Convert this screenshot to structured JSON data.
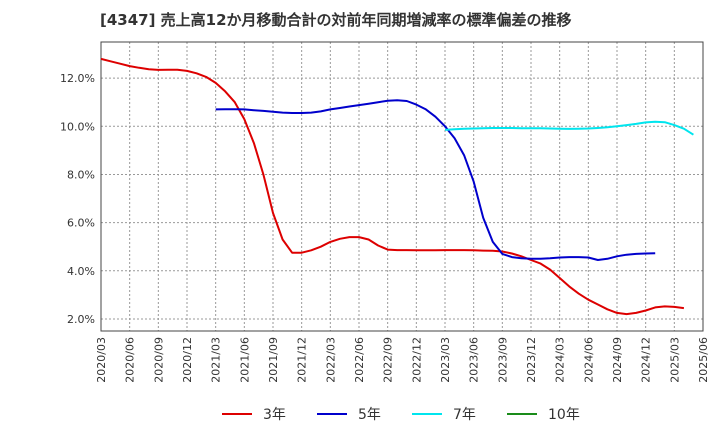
{
  "chart_data": {
    "type": "line",
    "title": "[4347]  売上高12か月移動合計の対前年同期増減率の標準偏差の推移",
    "xlabel": "",
    "ylabel": "",
    "ylim": [
      1.5,
      13.5
    ],
    "y_ticks": [
      2.0,
      4.0,
      6.0,
      8.0,
      10.0,
      12.0
    ],
    "y_tick_labels": [
      "2.0%",
      "4.0%",
      "6.0%",
      "8.0%",
      "10.0%",
      "12.0%"
    ],
    "x_tick_labels": [
      "2020/03",
      "2020/06",
      "2020/09",
      "2020/12",
      "2021/03",
      "2021/06",
      "2021/09",
      "2021/12",
      "2022/03",
      "2022/06",
      "2022/09",
      "2022/12",
      "2023/03",
      "2023/06",
      "2023/09",
      "2023/12",
      "2024/03",
      "2024/06",
      "2024/09",
      "2024/12",
      "2025/03",
      "2025/06"
    ],
    "x_start": "2020/03",
    "grid": true,
    "legend_position": "bottom",
    "series": [
      {
        "name": "3年",
        "color": "#dd0000",
        "start_month_offset": 0,
        "values": [
          12.8,
          12.7,
          12.6,
          12.5,
          12.43,
          12.37,
          12.34,
          12.35,
          12.35,
          12.3,
          12.2,
          12.05,
          11.8,
          11.45,
          11.0,
          10.3,
          9.3,
          8.0,
          6.4,
          5.3,
          4.75,
          4.75,
          4.85,
          5.0,
          5.2,
          5.33,
          5.4,
          5.4,
          5.3,
          5.05,
          4.88,
          4.86,
          4.86,
          4.85,
          4.85,
          4.85,
          4.86,
          4.86,
          4.86,
          4.85,
          4.84,
          4.83,
          4.8,
          4.72,
          4.6,
          4.45,
          4.3,
          4.05,
          3.7,
          3.35,
          3.05,
          2.8,
          2.6,
          2.4,
          2.25,
          2.2,
          2.25,
          2.35,
          2.48,
          2.52,
          2.5,
          2.45
        ]
      },
      {
        "name": "5年",
        "color": "#0000cc",
        "start_month_offset": 12,
        "values": [
          10.7,
          10.71,
          10.71,
          10.7,
          10.67,
          10.64,
          10.6,
          10.57,
          10.55,
          10.55,
          10.57,
          10.62,
          10.7,
          10.76,
          10.82,
          10.88,
          10.94,
          11.0,
          11.06,
          11.08,
          11.05,
          10.9,
          10.7,
          10.4,
          10.0,
          9.5,
          8.8,
          7.7,
          6.2,
          5.2,
          4.7,
          4.57,
          4.52,
          4.5,
          4.5,
          4.52,
          4.55,
          4.57,
          4.57,
          4.55,
          4.45,
          4.5,
          4.6,
          4.67,
          4.7,
          4.72,
          4.73
        ]
      },
      {
        "name": "7年",
        "color": "#00e5ee",
        "start_month_offset": 36,
        "values": [
          9.85,
          9.88,
          9.9,
          9.91,
          9.92,
          9.93,
          9.93,
          9.93,
          9.92,
          9.92,
          9.92,
          9.91,
          9.9,
          9.89,
          9.9,
          9.91,
          9.93,
          9.96,
          10.0,
          10.05,
          10.1,
          10.16,
          10.19,
          10.17,
          10.05,
          9.9,
          9.65
        ]
      },
      {
        "name": "10年",
        "color": "#1a8c1a",
        "start_month_offset": 0,
        "values": []
      }
    ]
  }
}
